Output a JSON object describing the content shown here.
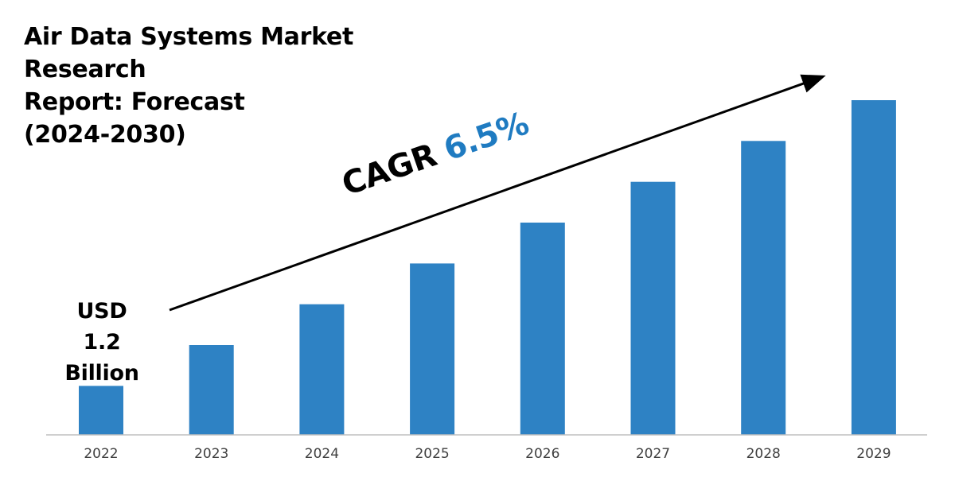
{
  "title": {
    "line1": "Air Data Systems Market Research",
    "line2": "Report: Forecast",
    "line3": "(2024-2030)"
  },
  "start_label": {
    "line1": "USD",
    "line2": "1.2",
    "line3": "Billion"
  },
  "cagr": {
    "label": "CAGR",
    "value": "6.5%"
  },
  "colors": {
    "bar": "#2e82c4",
    "cagr_value": "#1f7bc1",
    "arrow": "#000000",
    "axis": "#bfbfbf"
  },
  "chart_data": {
    "type": "bar",
    "categories": [
      "2022",
      "2023",
      "2024",
      "2025",
      "2026",
      "2027",
      "2028",
      "2029"
    ],
    "values": [
      1.2,
      2.2,
      3.2,
      4.2,
      5.2,
      6.2,
      7.2,
      8.2
    ],
    "title": "Air Data Systems Market Research Report: Forecast (2024-2030)",
    "xlabel": "",
    "ylabel": "",
    "ylim": [
      0,
      8.2
    ],
    "grid": false,
    "legend": "none",
    "annotations": [
      "USD 1.2 Billion",
      "CAGR 6.5%"
    ]
  }
}
